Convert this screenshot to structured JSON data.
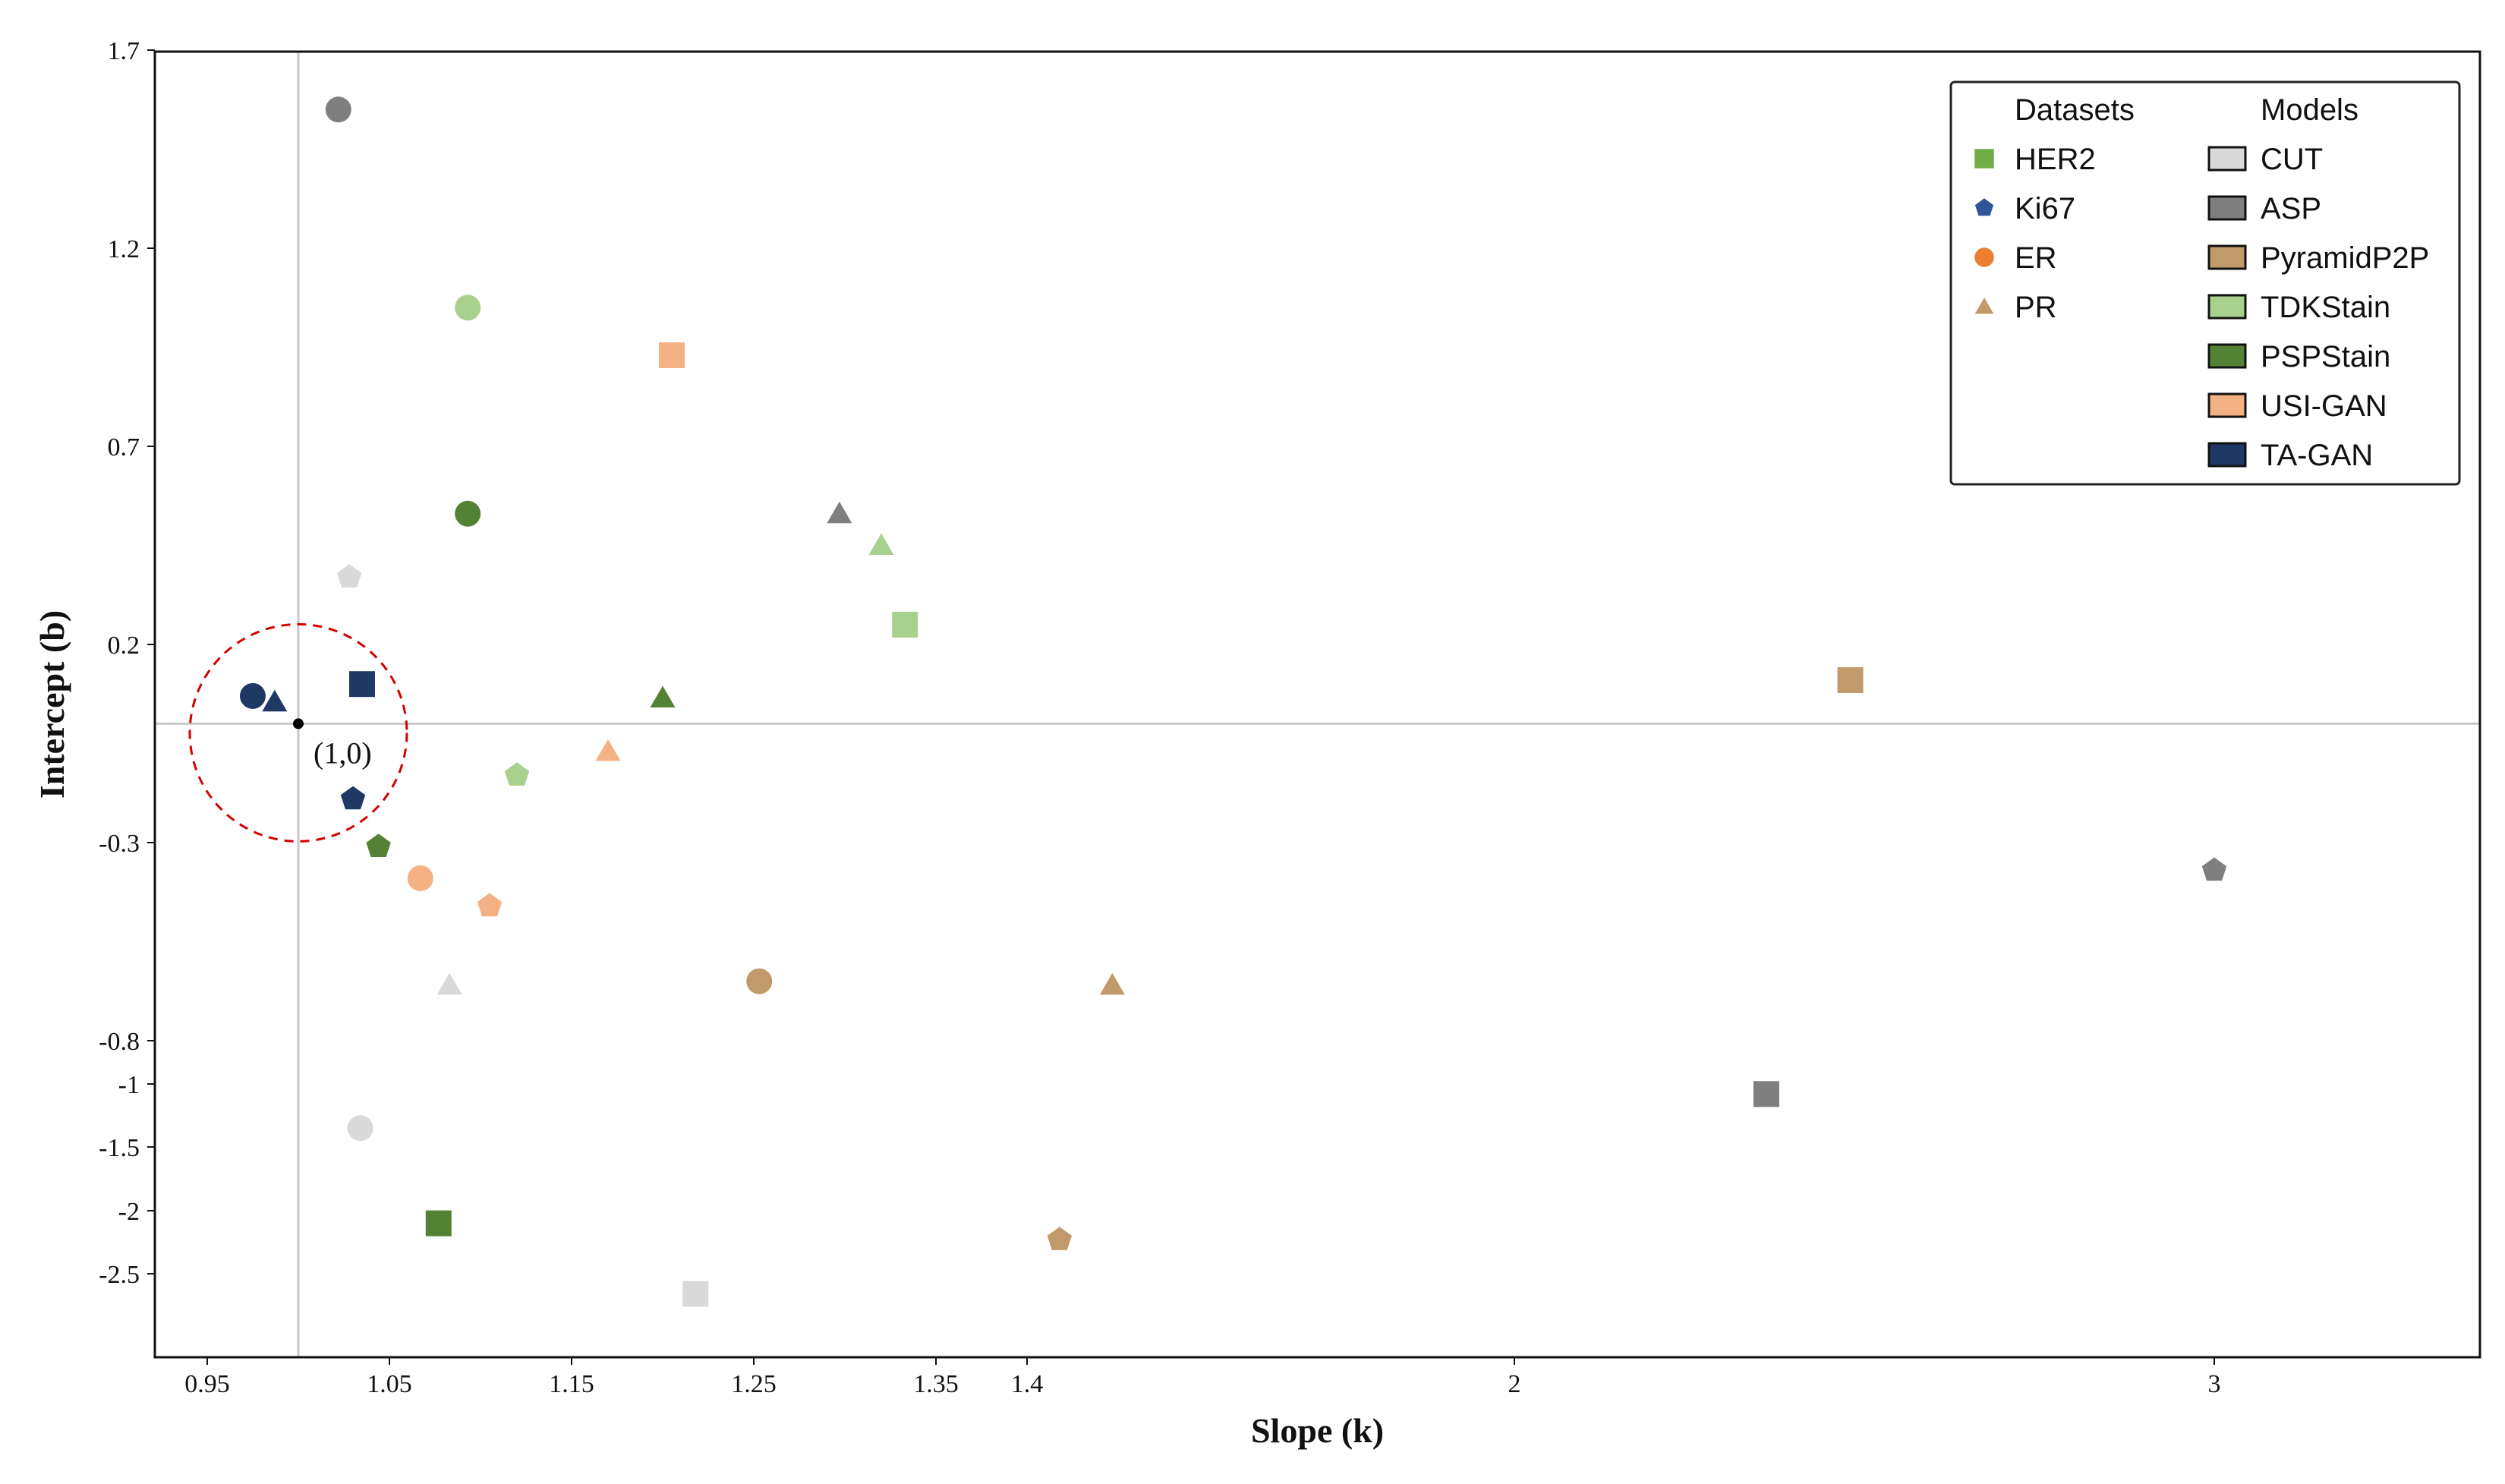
{
  "chart_data": {
    "type": "scatter",
    "xlabel": "Slope (k)",
    "ylabel": "Intercept (b)",
    "x_ticks": [
      "0.95",
      "1.05",
      "1.15",
      "1.25",
      "1.35",
      "1.4",
      "2",
      "3"
    ],
    "y_ticks": [
      "1.7",
      "1.2",
      "0.7",
      "0.2",
      "-0.3",
      "-0.8",
      "-1",
      "-1.5",
      "-2",
      "-2.5"
    ],
    "x_scale": "piecewise-linear (expanded between 0.95 and 1.35, compressed from 1.4 to 3)",
    "y_scale": "piecewise-linear (expanded above -0.8, compressed below -0.8)",
    "xlim": [
      0.92,
      3.38
    ],
    "ylim": [
      -2.82,
      1.7
    ],
    "grid": false,
    "reference_lines": {
      "x": 1,
      "y": 0
    },
    "annotation": {
      "label": "(1,0)",
      "x": 1,
      "y": 0,
      "circle_style": "red dashed"
    },
    "legend": {
      "placement": "top-right",
      "datasets_title": "Datasets",
      "models_title": "Models",
      "datasets": [
        {
          "name": "HER2",
          "marker": "square"
        },
        {
          "name": "Ki67",
          "marker": "pentagon"
        },
        {
          "name": "ER",
          "marker": "circle"
        },
        {
          "name": "PR",
          "marker": "triangle"
        }
      ],
      "models": [
        {
          "name": "CUT",
          "color": "#d9d9d9"
        },
        {
          "name": "ASP",
          "color": "#7f7f7f"
        },
        {
          "name": "PyramidP2P",
          "color": "#c09a6b"
        },
        {
          "name": "TDKStain",
          "color": "#a9d18e"
        },
        {
          "name": "PSPStain",
          "color": "#548235"
        },
        {
          "name": "USI-GAN",
          "color": "#f4b183"
        },
        {
          "name": "TA-GAN",
          "color": "#203864"
        }
      ]
    },
    "dataset_legend_colors": {
      "HER2": "#70ad47",
      "Ki67": "#2f5597",
      "ER": "#ed7d31",
      "PR": "#c09a6b"
    },
    "points": [
      {
        "model": "ASP",
        "dataset": "ER",
        "x": 1.022,
        "y": 1.55
      },
      {
        "model": "TDKStain",
        "dataset": "ER",
        "x": 1.093,
        "y": 1.05
      },
      {
        "model": "USI-GAN",
        "dataset": "HER2",
        "x": 1.205,
        "y": 0.93
      },
      {
        "model": "PSPStain",
        "dataset": "ER",
        "x": 1.093,
        "y": 0.53
      },
      {
        "model": "ASP",
        "dataset": "PR",
        "x": 1.297,
        "y": 0.53
      },
      {
        "model": "TDKStain",
        "dataset": "PR",
        "x": 1.32,
        "y": 0.45
      },
      {
        "model": "CUT",
        "dataset": "Ki67",
        "x": 1.028,
        "y": 0.37
      },
      {
        "model": "TDKStain",
        "dataset": "HER2",
        "x": 1.333,
        "y": 0.25
      },
      {
        "model": "PyramidP2P",
        "dataset": "HER2",
        "x": 2.48,
        "y": 0.11
      },
      {
        "model": "TA-GAN",
        "dataset": "HER2",
        "x": 1.035,
        "y": 0.1
      },
      {
        "model": "TA-GAN",
        "dataset": "ER",
        "x": 0.975,
        "y": 0.07
      },
      {
        "model": "TA-GAN",
        "dataset": "PR",
        "x": 0.987,
        "y": 0.055
      },
      {
        "model": "PSPStain",
        "dataset": "PR",
        "x": 1.2,
        "y": 0.065
      },
      {
        "model": "USI-GAN",
        "dataset": "PR",
        "x": 1.17,
        "y": -0.07
      },
      {
        "model": "TDKStain",
        "dataset": "Ki67",
        "x": 1.12,
        "y": -0.13
      },
      {
        "model": "TA-GAN",
        "dataset": "Ki67",
        "x": 1.03,
        "y": -0.19
      },
      {
        "model": "PSPStain",
        "dataset": "Ki67",
        "x": 1.044,
        "y": -0.31
      },
      {
        "model": "USI-GAN",
        "dataset": "ER",
        "x": 1.067,
        "y": -0.39
      },
      {
        "model": "USI-GAN",
        "dataset": "Ki67",
        "x": 1.105,
        "y": -0.46
      },
      {
        "model": "ASP",
        "dataset": "Ki67",
        "x": 3.0,
        "y": -0.37
      },
      {
        "model": "PyramidP2P",
        "dataset": "ER",
        "x": 1.253,
        "y": -0.65
      },
      {
        "model": "CUT",
        "dataset": "PR",
        "x": 1.083,
        "y": -0.66
      },
      {
        "model": "PyramidP2P",
        "dataset": "PR",
        "x": 1.505,
        "y": -0.66
      },
      {
        "model": "ASP",
        "dataset": "HER2",
        "x": 2.36,
        "y": -1.08
      },
      {
        "model": "CUT",
        "dataset": "ER",
        "x": 1.034,
        "y": -1.35
      },
      {
        "model": "PSPStain",
        "dataset": "HER2",
        "x": 1.077,
        "y": -2.1
      },
      {
        "model": "PyramidP2P",
        "dataset": "Ki67",
        "x": 1.44,
        "y": -2.23
      },
      {
        "model": "CUT",
        "dataset": "HER2",
        "x": 1.218,
        "y": -2.66
      }
    ]
  }
}
